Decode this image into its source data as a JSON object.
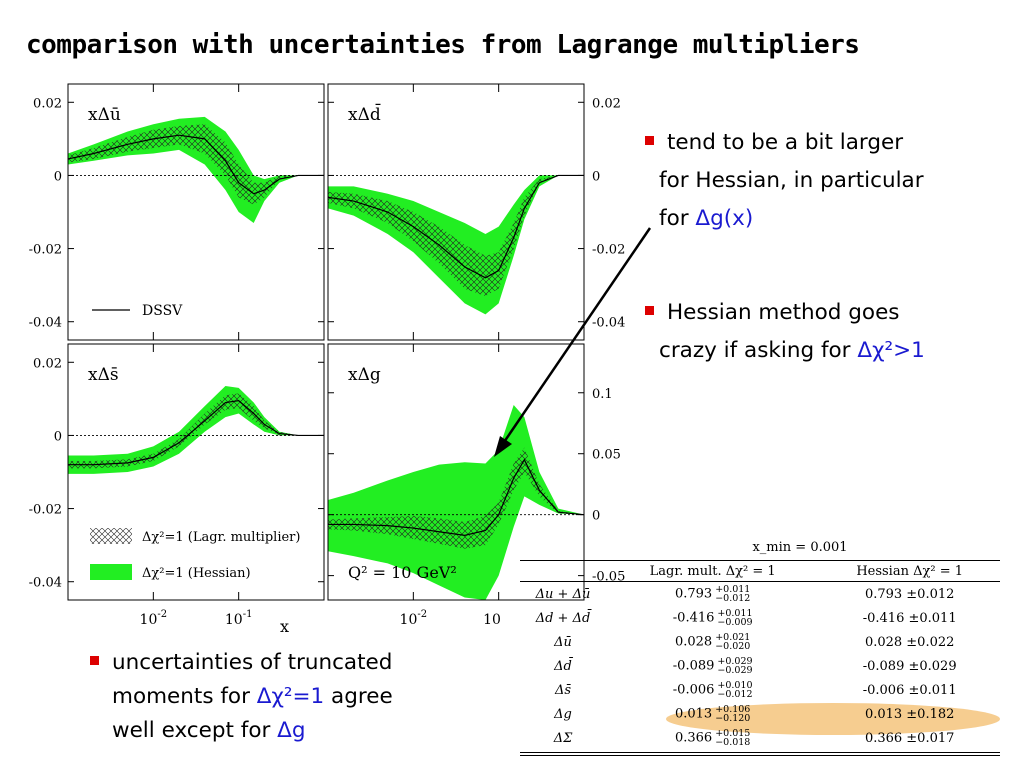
{
  "title": "comparison with uncertainties from Lagrange multipliers",
  "bullets": [
    {
      "pre": "tend to be a bit larger",
      "line2": "for Hessian, in particular",
      "line3a": "for ",
      "hl": "Δg(x)",
      "line3b": ""
    },
    {
      "pre": "Hessian method goes",
      "line2a": "crazy if asking for ",
      "hl": "Δχ²>1"
    },
    {
      "pre": "uncertainties of truncated",
      "line2a": "moments for ",
      "hl": "Δχ²=1",
      "line2b": " agree",
      "line3a": "well except for ",
      "hl2": "Δg"
    }
  ],
  "chart_data": [
    {
      "type": "area",
      "panel": "xΔū",
      "xscale": "log",
      "xlim": [
        0.001,
        1
      ],
      "ylim": [
        -0.045,
        0.025
      ],
      "yticks": [
        "0.02",
        "0",
        "-0.02",
        "-0.04"
      ],
      "x": [
        0.001,
        0.002,
        0.005,
        0.01,
        0.02,
        0.04,
        0.07,
        0.1,
        0.15,
        0.2,
        0.3,
        0.5,
        1.0
      ],
      "dssv": [
        0.0045,
        0.006,
        0.0085,
        0.01,
        0.011,
        0.01,
        0.004,
        -0.002,
        -0.005,
        -0.004,
        -0.001,
        0.0,
        0.0
      ],
      "hess_lo": [
        0.003,
        0.004,
        0.0055,
        0.006,
        0.007,
        0.003,
        -0.004,
        -0.01,
        -0.013,
        -0.007,
        -0.002,
        0.0,
        0.0
      ],
      "hess_hi": [
        0.006,
        0.0085,
        0.012,
        0.014,
        0.0155,
        0.016,
        0.012,
        0.007,
        0.0,
        -0.001,
        0.0,
        0.0,
        0.0
      ],
      "lagr_lo": [
        0.0035,
        0.0045,
        0.0065,
        0.0075,
        0.0085,
        0.006,
        0.0,
        -0.006,
        -0.008,
        -0.006,
        -0.001,
        0.0,
        0.0
      ],
      "lagr_hi": [
        0.0055,
        0.0075,
        0.0105,
        0.0125,
        0.0135,
        0.014,
        0.009,
        0.003,
        -0.002,
        -0.002,
        0.0,
        0.0,
        0.0
      ],
      "legend": "DSSV"
    },
    {
      "type": "area",
      "panel": "xΔd̄",
      "xscale": "log",
      "xlim": [
        0.001,
        1
      ],
      "ylim": [
        -0.045,
        0.025
      ],
      "yticks": [
        "0.02",
        "0",
        "-0.02",
        "-0.04"
      ],
      "x": [
        0.001,
        0.002,
        0.005,
        0.01,
        0.02,
        0.04,
        0.07,
        0.1,
        0.15,
        0.2,
        0.3,
        0.5,
        1.0
      ],
      "dssv": [
        -0.006,
        -0.007,
        -0.01,
        -0.014,
        -0.019,
        -0.025,
        -0.028,
        -0.026,
        -0.017,
        -0.009,
        -0.002,
        0.0,
        0.0
      ],
      "hess_lo": [
        -0.009,
        -0.011,
        -0.016,
        -0.021,
        -0.028,
        -0.035,
        -0.038,
        -0.035,
        -0.022,
        -0.012,
        -0.003,
        0.0,
        0.0
      ],
      "hess_hi": [
        -0.003,
        -0.003,
        -0.005,
        -0.007,
        -0.01,
        -0.013,
        -0.016,
        -0.014,
        -0.008,
        -0.004,
        0.0,
        0.0,
        0.0
      ],
      "lagr_lo": [
        -0.0075,
        -0.009,
        -0.013,
        -0.018,
        -0.024,
        -0.031,
        -0.033,
        -0.031,
        -0.02,
        -0.011,
        -0.002,
        0.0,
        0.0
      ],
      "lagr_hi": [
        -0.0045,
        -0.005,
        -0.007,
        -0.01,
        -0.014,
        -0.019,
        -0.022,
        -0.021,
        -0.013,
        -0.006,
        -0.001,
        0.0,
        0.0
      ]
    },
    {
      "type": "area",
      "panel": "xΔs̄",
      "xscale": "log",
      "xlim": [
        0.001,
        1
      ],
      "ylim": [
        -0.045,
        0.025
      ],
      "yticks": [
        "0.02",
        "0",
        "-0.02",
        "-0.04"
      ],
      "xticks": [
        "10-2",
        "10-1"
      ],
      "xlabel": "x",
      "x": [
        0.001,
        0.002,
        0.005,
        0.01,
        0.02,
        0.04,
        0.07,
        0.1,
        0.15,
        0.2,
        0.3,
        0.5,
        1.0
      ],
      "dssv": [
        -0.008,
        -0.008,
        -0.0075,
        -0.006,
        -0.002,
        0.004,
        0.009,
        0.0095,
        0.006,
        0.003,
        0.0005,
        0.0,
        0.0
      ],
      "hess_lo": [
        -0.0105,
        -0.0105,
        -0.01,
        -0.0085,
        -0.005,
        0.001,
        0.005,
        0.006,
        0.003,
        0.001,
        0.0,
        0.0,
        0.0
      ],
      "hess_hi": [
        -0.0055,
        -0.0055,
        -0.005,
        -0.003,
        0.001,
        0.008,
        0.0135,
        0.013,
        0.009,
        0.005,
        0.001,
        0.0,
        0.0
      ],
      "lagr_lo": [
        -0.009,
        -0.009,
        -0.0085,
        -0.007,
        -0.003,
        0.003,
        0.007,
        0.0075,
        0.004,
        0.002,
        0.0,
        0.0,
        0.0
      ],
      "lagr_hi": [
        -0.007,
        -0.007,
        -0.0065,
        -0.005,
        -0.001,
        0.006,
        0.011,
        0.0115,
        0.008,
        0.004,
        0.001,
        0.0,
        0.0
      ],
      "legend_lagr": "Δχ²=1 (Lagr. multiplier)",
      "legend_hess": "Δχ²=1 (Hessian)"
    },
    {
      "type": "area",
      "panel": "xΔg",
      "xscale": "log",
      "xlim": [
        0.001,
        1
      ],
      "ylim": [
        -0.07,
        0.14
      ],
      "yticks": [
        "0.1",
        "0.05",
        "0",
        "-0.05"
      ],
      "xticks": [
        "10-2",
        "10"
      ],
      "x": [
        0.001,
        0.002,
        0.005,
        0.01,
        0.02,
        0.04,
        0.07,
        0.1,
        0.15,
        0.2,
        0.3,
        0.5,
        1.0
      ],
      "dssv": [
        -0.008,
        -0.008,
        -0.009,
        -0.011,
        -0.014,
        -0.017,
        -0.013,
        0.0,
        0.03,
        0.045,
        0.02,
        0.002,
        0.0
      ],
      "hess_lo": [
        -0.03,
        -0.034,
        -0.04,
        -0.048,
        -0.058,
        -0.068,
        -0.07,
        -0.05,
        -0.01,
        0.015,
        0.008,
        0.001,
        0.0
      ],
      "hess_hi": [
        0.012,
        0.018,
        0.028,
        0.035,
        0.041,
        0.043,
        0.042,
        0.053,
        0.09,
        0.08,
        0.035,
        0.005,
        0.0
      ],
      "lagr_lo": [
        -0.012,
        -0.013,
        -0.016,
        -0.02,
        -0.024,
        -0.028,
        -0.025,
        -0.008,
        0.02,
        0.035,
        0.015,
        0.001,
        0.0
      ],
      "lagr_hi": [
        -0.004,
        -0.003,
        -0.002,
        -0.001,
        -0.003,
        -0.006,
        -0.001,
        0.01,
        0.042,
        0.055,
        0.025,
        0.003,
        0.0
      ],
      "q2": "Q² = 10 GeV²"
    }
  ],
  "table": {
    "xmin": "x_min = 0.001",
    "headers": [
      "",
      "Lagr. mult. Δχ² = 1",
      "Hessian Δχ² = 1"
    ],
    "rows": [
      {
        "q": "Δu + Δū",
        "l": "0.793",
        "lup": "+0.011",
        "ldn": "−0.012",
        "h": "0.793 ±0.012"
      },
      {
        "q": "Δd + Δd̄",
        "l": "-0.416",
        "lup": "+0.011",
        "ldn": "−0.009",
        "h": "-0.416 ±0.011"
      },
      {
        "q": "Δū",
        "l": "0.028",
        "lup": "+0.021",
        "ldn": "−0.020",
        "h": "0.028 ±0.022"
      },
      {
        "q": "Δd̄",
        "l": "-0.089",
        "lup": "+0.029",
        "ldn": "−0.029",
        "h": "-0.089 ±0.029"
      },
      {
        "q": "Δs̄",
        "l": "-0.006",
        "lup": "+0.010",
        "ldn": "−0.012",
        "h": "-0.006 ±0.011"
      },
      {
        "q": "Δg",
        "l": "0.013",
        "lup": "+0.106",
        "ldn": "−0.120",
        "h": "0.013 ±0.182"
      },
      {
        "q": "ΔΣ",
        "l": "0.366",
        "lup": "+0.015",
        "ldn": "−0.018",
        "h": "0.366 ±0.017"
      }
    ]
  },
  "colors": {
    "hessian": "#22ee22",
    "accent": "#1a1ad0",
    "bullet": "#dd0000",
    "highlight": "#f4c47c"
  }
}
